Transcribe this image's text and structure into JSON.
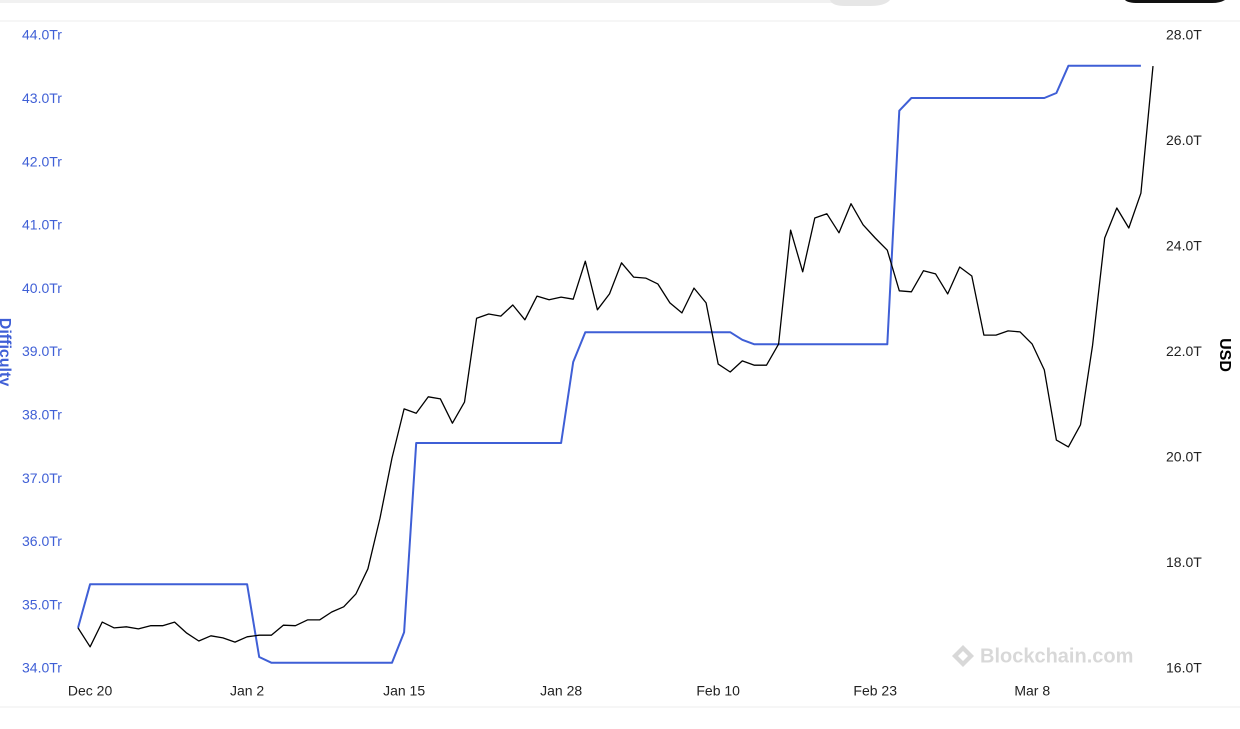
{
  "chart_data": {
    "type": "line",
    "ylabel": "Difficulty",
    "y2label": "USD",
    "watermark": "Blockchain.com",
    "categories": [
      null,
      "Dec 20",
      null,
      null,
      null,
      null,
      null,
      null,
      null,
      null,
      null,
      null,
      null,
      null,
      "Jan 2",
      null,
      null,
      null,
      null,
      null,
      null,
      null,
      null,
      null,
      null,
      null,
      null,
      "Jan 15",
      null,
      null,
      null,
      null,
      null,
      null,
      null,
      null,
      null,
      null,
      null,
      null,
      "Jan 28",
      null,
      null,
      null,
      null,
      null,
      null,
      null,
      null,
      null,
      null,
      null,
      null,
      "Feb 10",
      null,
      null,
      null,
      null,
      null,
      null,
      null,
      null,
      null,
      null,
      null,
      null,
      "Feb 23",
      null,
      null,
      null,
      null,
      null,
      null,
      null,
      null,
      null,
      null,
      null,
      null,
      "Mar 8",
      null,
      null,
      null,
      null,
      null,
      null,
      null,
      null,
      null,
      null
    ],
    "series": [
      {
        "color": "#3f5fd6",
        "axis": "y",
        "values": [
          34.65,
          35.34,
          35.34,
          35.34,
          35.34,
          35.34,
          35.34,
          35.34,
          35.34,
          35.34,
          35.34,
          35.34,
          35.34,
          35.34,
          35.34,
          34.19,
          34.1,
          34.1,
          34.1,
          34.1,
          34.1,
          34.1,
          34.1,
          34.1,
          34.1,
          34.1,
          34.1,
          34.58,
          37.57,
          37.57,
          37.57,
          37.57,
          37.57,
          37.57,
          37.57,
          37.57,
          37.57,
          37.57,
          37.57,
          37.57,
          37.57,
          38.85,
          39.32,
          39.32,
          39.32,
          39.32,
          39.32,
          39.32,
          39.32,
          39.32,
          39.32,
          39.32,
          39.32,
          39.32,
          39.32,
          39.2,
          39.13,
          39.13,
          39.13,
          39.13,
          39.13,
          39.13,
          39.13,
          39.13,
          39.13,
          39.13,
          39.13,
          39.13,
          42.82,
          43.02,
          43.02,
          43.02,
          43.02,
          43.02,
          43.02,
          43.02,
          43.02,
          43.02,
          43.02,
          43.02,
          43.02,
          43.1,
          43.53,
          43.53,
          43.53,
          43.53,
          43.53,
          43.53,
          43.53,
          null
        ]
      },
      {
        "color": "#000000",
        "axis": "y2",
        "values": [
          16.78,
          16.42,
          16.89,
          16.78,
          16.8,
          16.76,
          16.82,
          16.82,
          16.89,
          16.68,
          16.53,
          16.63,
          16.59,
          16.51,
          16.61,
          16.64,
          16.64,
          16.83,
          16.82,
          16.93,
          16.93,
          17.08,
          17.18,
          17.42,
          17.9,
          18.86,
          20.0,
          20.93,
          20.85,
          21.16,
          21.12,
          20.66,
          21.06,
          22.65,
          22.73,
          22.69,
          22.9,
          22.62,
          23.07,
          23.0,
          23.05,
          23.01,
          23.73,
          22.81,
          23.11,
          23.7,
          23.43,
          23.41,
          23.3,
          22.94,
          22.75,
          23.22,
          22.94,
          21.78,
          21.63,
          21.84,
          21.76,
          21.76,
          22.16,
          24.32,
          23.53,
          24.55,
          24.63,
          24.27,
          24.82,
          24.42,
          24.17,
          23.94,
          23.17,
          23.15,
          23.55,
          23.49,
          23.11,
          23.62,
          23.45,
          22.33,
          22.33,
          22.41,
          22.39,
          22.16,
          21.67,
          20.34,
          20.21,
          20.63,
          22.14,
          24.17,
          24.74,
          24.36,
          25.02,
          27.43
        ]
      }
    ],
    "ylim": [
      34,
      44
    ],
    "yticks": [
      {
        "value": 34,
        "label": "34.0Tr"
      },
      {
        "value": 35,
        "label": "35.0Tr"
      },
      {
        "value": 36,
        "label": "36.0Tr"
      },
      {
        "value": 37,
        "label": "37.0Tr"
      },
      {
        "value": 38,
        "label": "38.0Tr"
      },
      {
        "value": 39,
        "label": "39.0Tr"
      },
      {
        "value": 40,
        "label": "40.0Tr"
      },
      {
        "value": 41,
        "label": "41.0Tr"
      },
      {
        "value": 42,
        "label": "42.0Tr"
      },
      {
        "value": 43,
        "label": "43.0Tr"
      },
      {
        "value": 44,
        "label": "44.0Tr"
      }
    ],
    "y2lim": [
      16,
      28
    ],
    "y2ticks": [
      {
        "value": 16,
        "label": "16.0T"
      },
      {
        "value": 18,
        "label": "18.0T"
      },
      {
        "value": 20,
        "label": "20.0T"
      },
      {
        "value": 22,
        "label": "22.0T"
      },
      {
        "value": 24,
        "label": "24.0T"
      },
      {
        "value": 26,
        "label": "26.0T"
      },
      {
        "value": 28,
        "label": "28.0T"
      }
    ],
    "grid": false
  }
}
